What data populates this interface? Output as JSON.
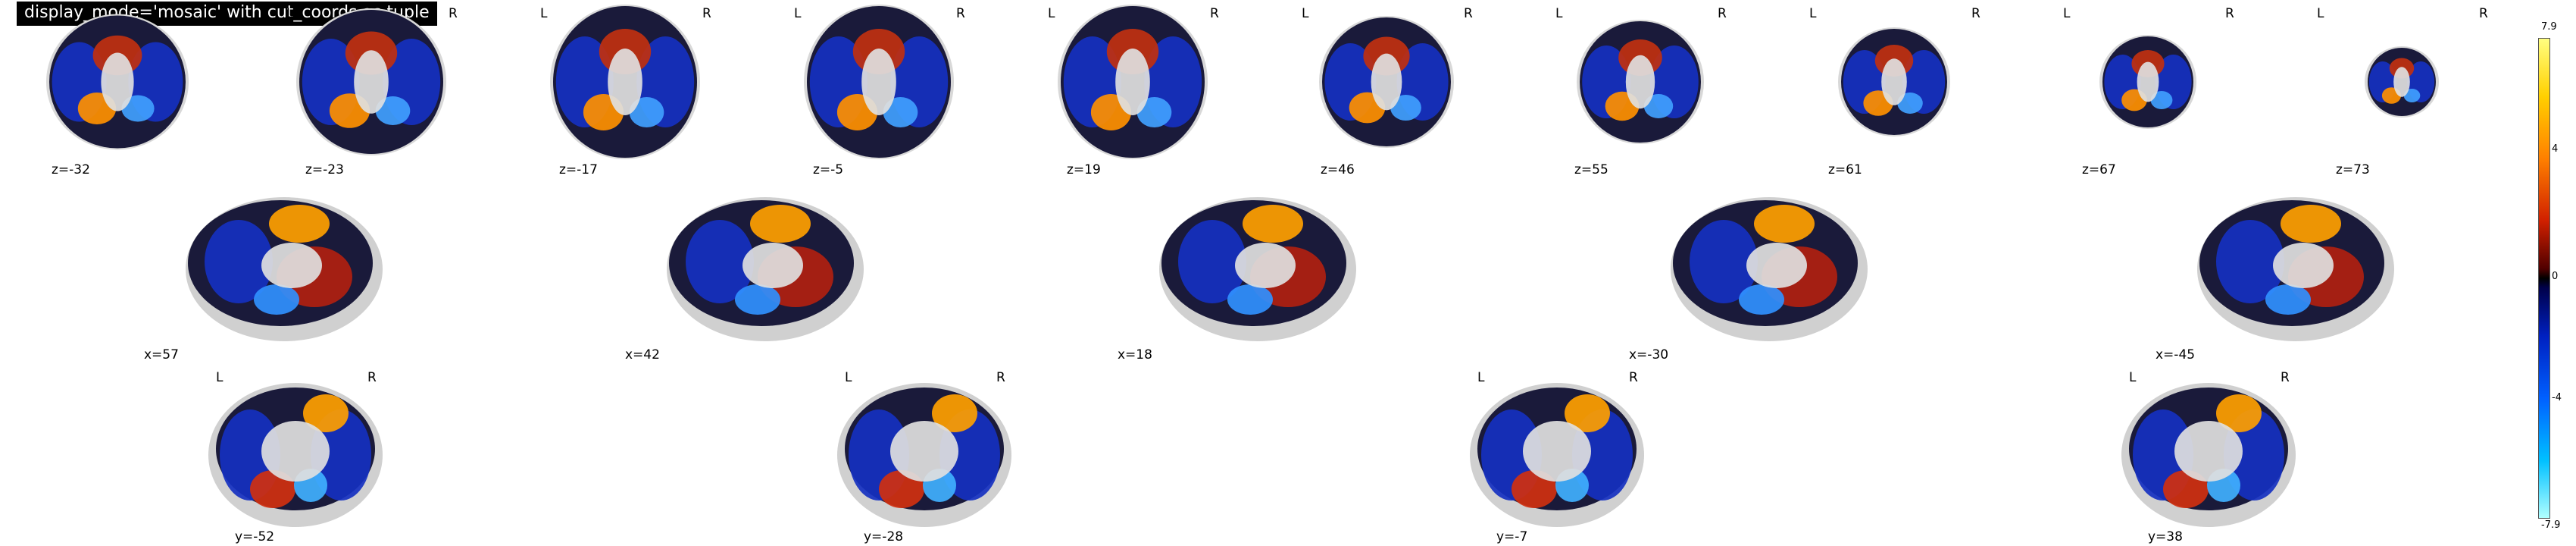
{
  "title": "display_mode='mosaic' with cut_coords as tuple",
  "orientation_labels": {
    "left": "L",
    "right": "R"
  },
  "axial_cuts": [
    {
      "label": "z=-32",
      "has_lr": false
    },
    {
      "label": "z=-23",
      "has_lr": true
    },
    {
      "label": "z=-17",
      "has_lr": true
    },
    {
      "label": "z=-5",
      "has_lr": true
    },
    {
      "label": "z=19",
      "has_lr": true
    },
    {
      "label": "z=46",
      "has_lr": true
    },
    {
      "label": "z=55",
      "has_lr": true
    },
    {
      "label": "z=61",
      "has_lr": true
    },
    {
      "label": "z=67",
      "has_lr": true
    },
    {
      "label": "z=73",
      "has_lr": true
    }
  ],
  "sagittal_cuts": [
    {
      "label": "x=57"
    },
    {
      "label": "x=42"
    },
    {
      "label": "x=18"
    },
    {
      "label": "x=-30"
    },
    {
      "label": "x=-45"
    }
  ],
  "coronal_cuts": [
    {
      "label": "y=-52"
    },
    {
      "label": "y=-28"
    },
    {
      "label": "y=-7"
    },
    {
      "label": "y=38"
    }
  ],
  "colorbar": {
    "ticks": [
      "7.9",
      "4",
      "0",
      "-4",
      "-7.9"
    ],
    "colormap": "cold_hot",
    "colors": {
      "hot": "#ffd000",
      "mid": "#000000",
      "cold": "#00a0ff"
    }
  }
}
